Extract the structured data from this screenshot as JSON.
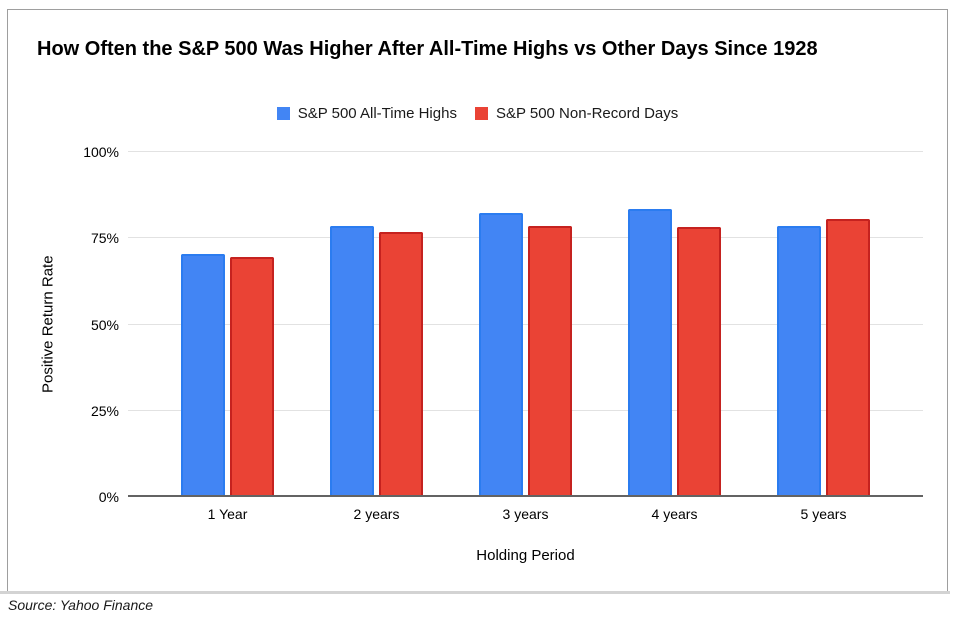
{
  "title": "How Often the S&P 500 Was Higher After All-Time Highs vs Other Days Since 1928",
  "source": "Source: Yahoo Finance",
  "chart_data": {
    "type": "bar",
    "title": "How Often the S&P 500 Was Higher After All-Time Highs vs Other Days Since 1928",
    "categories": [
      "1 Year",
      "2 years",
      "3 years",
      "4 years",
      "5 years"
    ],
    "series": [
      {
        "name": "S&P 500 All-Time Highs",
        "color": "#4285F4",
        "border_color": "#2B7CF0",
        "values": [
          70.4,
          78.5,
          82.4,
          83.6,
          78.7
        ]
      },
      {
        "name": "S&P 500 Non-Record Days",
        "color": "#EA4335",
        "border_color": "#C5221F",
        "values": [
          69.5,
          76.8,
          78.7,
          78.2,
          80.5
        ]
      }
    ],
    "xlabel": "Holding Period",
    "ylabel": "Positive Return Rate",
    "ylim": [
      0,
      100
    ],
    "y_ticks": [
      "0%",
      "25%",
      "50%",
      "75%",
      "100%"
    ],
    "y_tick_values": [
      0,
      25,
      50,
      75,
      100
    ],
    "grid": true,
    "legend_position": "top",
    "unit": "%"
  },
  "colors": {
    "gridline": "#E2E2E2",
    "axis_line": "#636363",
    "card_border": "#9E9E9E",
    "bottom_rule": "#D3D3D3",
    "text": "#000000"
  }
}
